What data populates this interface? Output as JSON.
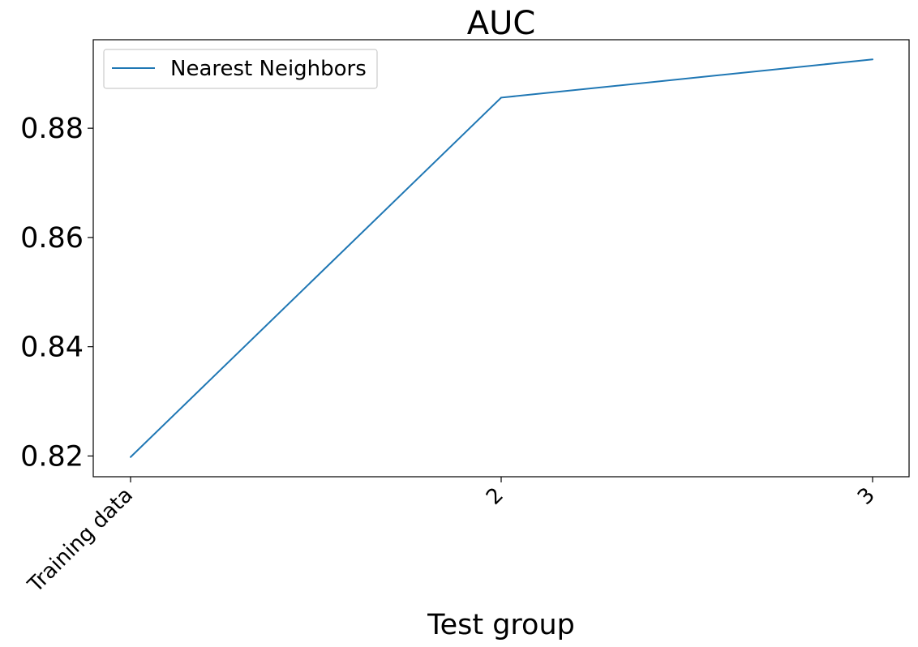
{
  "chart_data": {
    "type": "line",
    "title": "AUC",
    "xlabel": "Test group",
    "ylabel": "",
    "categories": [
      "Training data",
      "2",
      "3"
    ],
    "series": [
      {
        "name": "Nearest Neighbors",
        "values": [
          0.8198,
          0.8856,
          0.8926
        ],
        "color": "#1f77b4"
      }
    ],
    "y_ticks": [
      0.82,
      0.84,
      0.86,
      0.88
    ],
    "y_tick_labels": [
      "0.82",
      "0.84",
      "0.86",
      "0.88"
    ],
    "ylim": [
      0.8162,
      0.8962
    ],
    "grid": false,
    "legend_position": "upper-left"
  }
}
